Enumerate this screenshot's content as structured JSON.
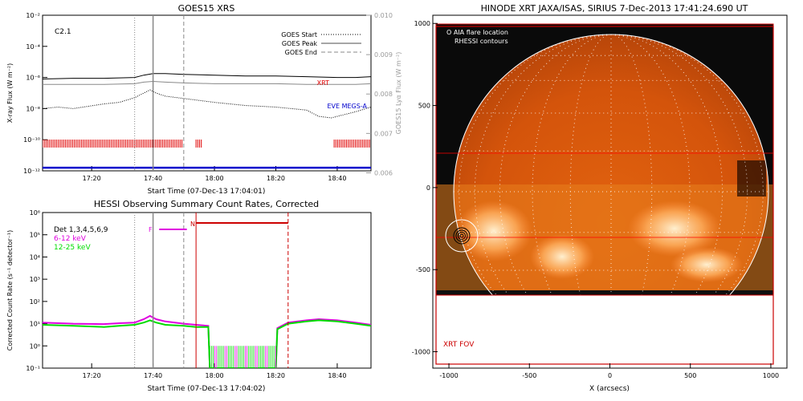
{
  "colors": {
    "axis": "#000000",
    "right_axis": "#9a9a9a",
    "xrt": "#e00000",
    "eve": "#0000cc",
    "goes_red": "#ff0000",
    "magenta": "#e000e0",
    "green": "#00dd00",
    "sun_dark": "#c84a08",
    "sun_light": "#ffd08a"
  },
  "chart_data": [
    {
      "type": "line",
      "title": "GOES15 XRS",
      "flare_class": "C2.1",
      "xlabel": "Start Time (07-Dec-13 17:04:01)",
      "ylabel": "X-ray Flux (W m⁻²)",
      "ylabel_right": "GOES15 Lyα Flux (W m⁻²)",
      "x_ticks": [
        "17:20",
        "17:40",
        "18:00",
        "18:20",
        "18:40"
      ],
      "x_tick_minutes": [
        16,
        36,
        56,
        76,
        96
      ],
      "xlim_minutes": [
        0,
        107
      ],
      "ylim_log": [
        -12,
        -2
      ],
      "y_ticks": [
        "10⁻²",
        "10⁻⁴",
        "10⁻⁶",
        "10⁻⁸",
        "10⁻¹⁰",
        "10⁻¹²"
      ],
      "y_tick_exps": [
        -2,
        -4,
        -6,
        -8,
        -10,
        -12
      ],
      "right_ticks": [
        "0.010",
        "0.009",
        "0.008",
        "0.007",
        "0.006"
      ],
      "right_tick_values": [
        0.01,
        0.009,
        0.008,
        0.007,
        0.006
      ],
      "right_lim": [
        0.00605,
        0.01
      ],
      "legend": [
        {
          "label": "GOES Start",
          "dash": "dotted"
        },
        {
          "label": "GOES Peak",
          "dash": "solid"
        },
        {
          "label": "GOES End",
          "dash": "dashed"
        }
      ],
      "vlines_minutes": {
        "start": 30,
        "peak": 36,
        "end": 46
      },
      "series": [
        {
          "name": "",
          "color": "#000000",
          "x": [
            0,
            10,
            20,
            30,
            33,
            36,
            40,
            46,
            56,
            66,
            76,
            86,
            96,
            102,
            107
          ],
          "y_log": [
            -6.1,
            -6.05,
            -6.05,
            -6.0,
            -5.85,
            -5.75,
            -5.75,
            -5.8,
            -5.85,
            -5.9,
            -5.9,
            -5.95,
            -6.0,
            -6.0,
            -5.95
          ]
        },
        {
          "name": "",
          "color": "#888888",
          "x": [
            0,
            10,
            20,
            30,
            33,
            36,
            40,
            46,
            56,
            66,
            76,
            86,
            96,
            102,
            107
          ],
          "y_log": [
            -6.45,
            -6.45,
            -6.45,
            -6.4,
            -6.3,
            -6.25,
            -6.3,
            -6.35,
            -6.4,
            -6.4,
            -6.4,
            -6.45,
            -6.45,
            -6.45,
            -6.4
          ]
        },
        {
          "name": "",
          "color": "#000000",
          "dash": "dotted",
          "x": [
            0,
            5,
            10,
            15,
            20,
            25,
            30,
            33,
            35,
            37,
            40,
            46,
            56,
            66,
            76,
            86,
            90,
            94,
            98,
            102,
            107
          ],
          "y_log": [
            -8.0,
            -7.9,
            -8.0,
            -7.85,
            -7.7,
            -7.6,
            -7.3,
            -7.0,
            -6.8,
            -7.0,
            -7.2,
            -7.35,
            -7.6,
            -7.8,
            -7.9,
            -8.1,
            -8.5,
            -8.6,
            -8.4,
            -8.2,
            -7.9
          ]
        },
        {
          "name": "XRT",
          "color": "#e00000",
          "x": [],
          "y_log": []
        },
        {
          "name": "EVE MEGS-A",
          "color": "#0000cc",
          "x": [],
          "y_log": []
        },
        {
          "name": "",
          "color": "#0000cc",
          "x": [
            0,
            107
          ],
          "y_log": [
            -11.8,
            -11.8
          ]
        }
      ],
      "red_bars_minutes": [
        [
          0,
          38
        ],
        [
          38.5,
          45.5
        ],
        [
          50,
          52
        ],
        [
          95,
          107
        ]
      ]
    },
    {
      "type": "line",
      "title": "HESSI Observing Summary Count Rates, Corrected",
      "xlabel": "Start Time (07-Dec-13 17:04:02)",
      "ylabel": "Corrected Count Rate (s⁻¹ detector⁻¹)",
      "x_ticks": [
        "17:20",
        "17:40",
        "18:00",
        "18:20",
        "18:40"
      ],
      "x_tick_minutes": [
        16,
        36,
        56,
        76,
        96
      ],
      "xlim_minutes": [
        0,
        107
      ],
      "ylim_log": [
        -1,
        6
      ],
      "y_ticks": [
        "10⁶",
        "10⁵",
        "10⁴",
        "10³",
        "10²",
        "10¹",
        "10⁰",
        "10⁻¹"
      ],
      "y_tick_exps": [
        6,
        5,
        4,
        3,
        2,
        1,
        0,
        -1
      ],
      "legend": [
        {
          "label": "Det 1,3,4,5,6,9",
          "color": "#000000"
        },
        {
          "label": "6-12 keV",
          "color": "#e000e0"
        },
        {
          "label": "12-25 keV",
          "color": "#00dd00"
        }
      ],
      "vlines_minutes": {
        "start": 30,
        "peak": 36,
        "end": 46
      },
      "flag_f": {
        "label": "F",
        "from": 38,
        "to": 47
      },
      "flag_n": {
        "label": "N",
        "from": 50,
        "to": 80
      },
      "series": [
        {
          "name": "6-12 keV",
          "color": "#e000e0",
          "x": [
            0,
            10,
            20,
            25,
            30,
            33,
            35,
            37,
            40,
            46,
            50,
            54,
            54.5,
            76,
            76.5,
            80,
            86,
            90,
            96,
            102,
            107
          ],
          "y_log": [
            1.05,
            1.0,
            0.98,
            1.02,
            1.05,
            1.2,
            1.35,
            1.2,
            1.1,
            1.0,
            0.95,
            0.9,
            -1,
            -1,
            0.8,
            1.05,
            1.15,
            1.2,
            1.15,
            1.05,
            0.95
          ]
        },
        {
          "name": "12-25 keV",
          "color": "#00dd00",
          "x": [
            0,
            10,
            20,
            25,
            30,
            33,
            35,
            37,
            40,
            46,
            50,
            54,
            54.5,
            76,
            76.5,
            80,
            86,
            90,
            96,
            102,
            107
          ],
          "y_log": [
            0.95,
            0.9,
            0.85,
            0.9,
            0.95,
            1.05,
            1.15,
            1.05,
            0.95,
            0.9,
            0.85,
            0.85,
            -1,
            -1,
            0.75,
            1.0,
            1.1,
            1.15,
            1.1,
            1.0,
            0.9
          ]
        }
      ],
      "low_state_minutes": [
        54.5,
        76
      ]
    },
    {
      "type": "heatmap",
      "title": "HINODE XRT JAXA/ISAS, SIRIUS  7-Dec-2013 17:41:24.690 UT",
      "xlabel": "X (arcsecs)",
      "ylabel": "",
      "x_ticks": [
        "-1000",
        "-500",
        "0",
        "500",
        "1000"
      ],
      "x_tick_values": [
        -1000,
        -500,
        0,
        500,
        1000
      ],
      "y_ticks": [
        "1000",
        "500",
        "0",
        "-500",
        "-1000"
      ],
      "y_tick_values": [
        1000,
        500,
        0,
        -500,
        -1000
      ],
      "xlim": [
        -1100,
        1100
      ],
      "ylim": [
        -1100,
        1050
      ],
      "legend": [
        "O AIA flare location",
        "RHESSI contours"
      ],
      "fov_label": "XRT FOV",
      "solar_radius_arcsec": 975,
      "flare_location": [
        -940,
        -280
      ],
      "image_extent": {
        "x": [
          -1080,
          960
        ],
        "y": [
          -650,
          1000
        ]
      },
      "fov_box": {
        "x": [
          -1080,
          1040
        ],
        "y": [
          -1070,
          1030
        ]
      }
    }
  ]
}
